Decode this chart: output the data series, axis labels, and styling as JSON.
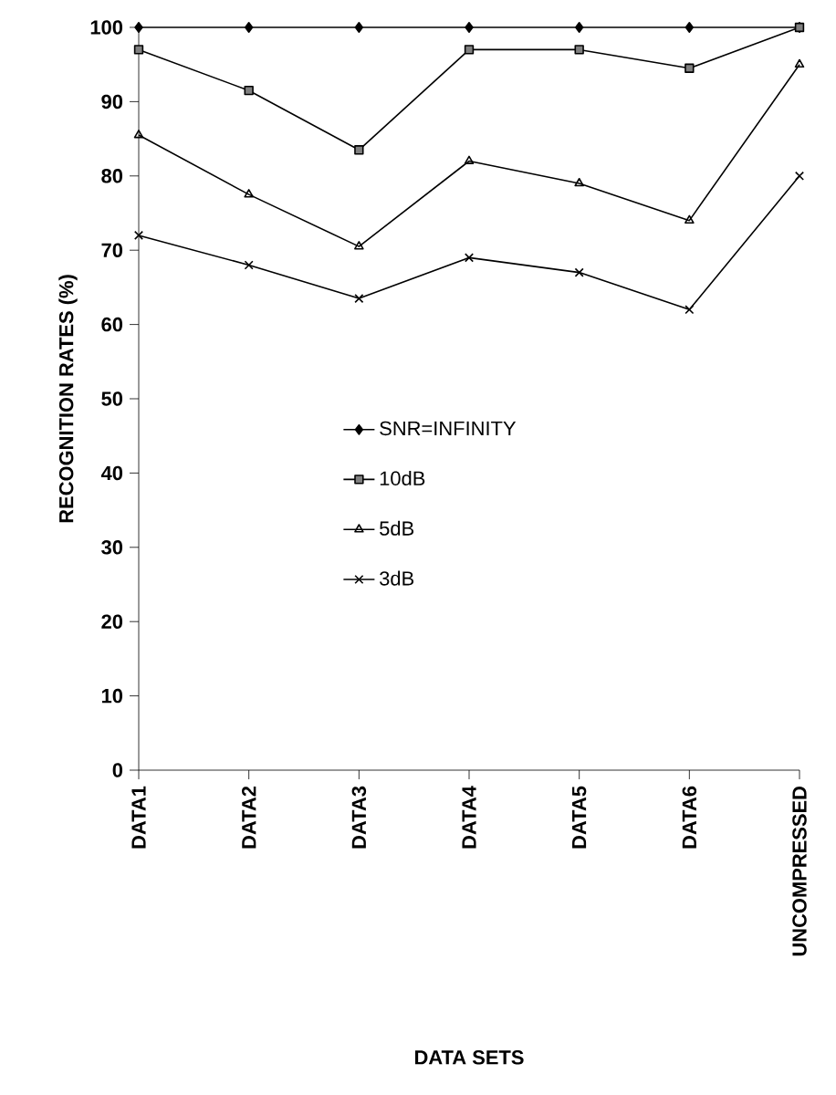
{
  "chart_data": {
    "type": "line",
    "xlabel": "DATA SETS",
    "ylabel": "RECOGNITION RATES (%)",
    "categories": [
      "DATA1",
      "DATA2",
      "DATA3",
      "DATA4",
      "DATA5",
      "DATA6",
      "UNCOMPRESSED"
    ],
    "ylim": [
      0,
      100
    ],
    "yticks": [
      0,
      10,
      20,
      30,
      40,
      50,
      60,
      70,
      80,
      90,
      100
    ],
    "legend": "center",
    "grid": false,
    "series": [
      {
        "name": "SNR=INFINITY",
        "color": "#000000",
        "marker": "diamond",
        "values": [
          100,
          100,
          100,
          100,
          100,
          100,
          100
        ]
      },
      {
        "name": "10dB",
        "color": "#000000",
        "marker": "square",
        "values": [
          97,
          91.5,
          83.5,
          97,
          97,
          94.5,
          100
        ]
      },
      {
        "name": "5dB",
        "color": "#000000",
        "marker": "triangle",
        "values": [
          85.5,
          77.5,
          70.5,
          82,
          79,
          74,
          95
        ]
      },
      {
        "name": "3dB",
        "color": "#000000",
        "marker": "cross",
        "values": [
          72,
          68,
          63.5,
          69,
          67,
          62,
          80
        ]
      }
    ]
  }
}
